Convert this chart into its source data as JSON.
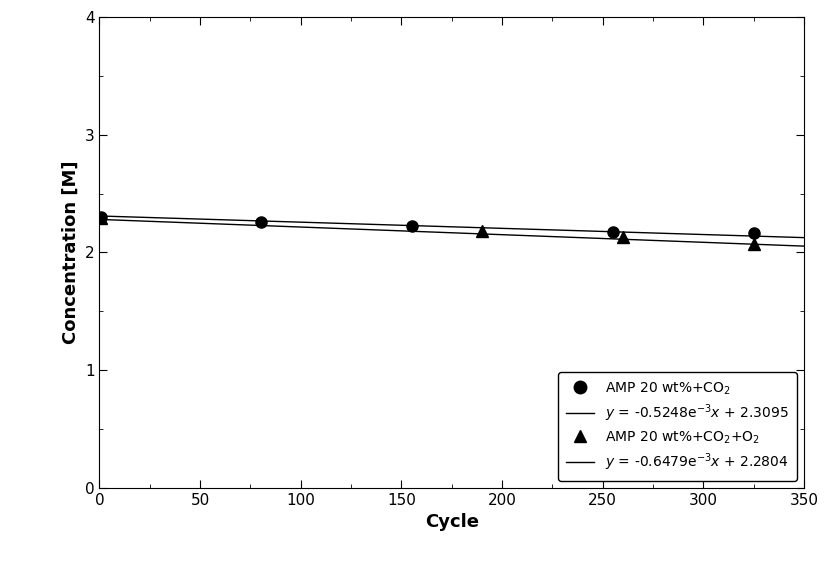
{
  "series1": {
    "label": "AMP 20 wt%+CO$_2$",
    "x": [
      1,
      80,
      155,
      255,
      325
    ],
    "y": [
      2.305,
      2.255,
      2.225,
      2.175,
      2.165
    ],
    "marker": "o",
    "color": "black"
  },
  "series2": {
    "label": "AMP 20 wt%+CO$_2$+O$_2$",
    "x": [
      1,
      190,
      260,
      325
    ],
    "y": [
      2.29,
      2.18,
      2.13,
      2.075
    ],
    "marker": "^",
    "color": "black"
  },
  "fit1": {
    "slope": -0.0005248,
    "intercept": 2.3095,
    "label": "$y$ = -0.5248e$^{-3}$$x$ + 2.3095",
    "color": "black",
    "linewidth": 1.0
  },
  "fit2": {
    "slope": -0.0006479,
    "intercept": 2.2804,
    "label": "$y$ = -0.6479e$^{-3}$$x$ + 2.2804",
    "color": "black",
    "linewidth": 1.0
  },
  "xlabel": "Cycle",
  "ylabel": "Concentration [M]",
  "xlim": [
    0,
    350
  ],
  "ylim": [
    0,
    4
  ],
  "xticks": [
    0,
    50,
    100,
    150,
    200,
    250,
    300,
    350
  ],
  "yticks": [
    0,
    1,
    2,
    3,
    4
  ],
  "figsize": [
    8.29,
    5.61
  ],
  "dpi": 100,
  "legend_loc": "lower right"
}
